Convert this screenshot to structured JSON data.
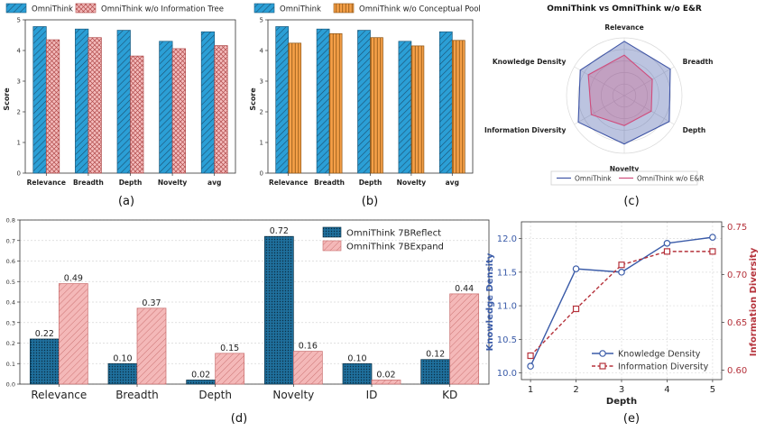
{
  "colors": {
    "omnithink": "#2b9fd6",
    "omnithink_edge": "#1a5a7f",
    "no_info_tree": "#f4bcbc",
    "no_info_tree_edge": "#b04a4a",
    "no_concept_pool": "#f5a048",
    "no_concept_pool_edge": "#8a5314",
    "radar_full": "#3f55a6",
    "radar_ablated": "#d04c7c",
    "reflect": "#1f6f9c",
    "expand": "#f4b8b8",
    "kd_line": "#3a5ba8",
    "id_line": "#b5323b"
  },
  "chart_data": [
    {
      "id": "a",
      "caption": "(a)",
      "type": "bar",
      "title": "",
      "xlabel": "",
      "ylabel": "Score",
      "ylim": [
        0,
        5
      ],
      "yticks": [
        "0",
        "1",
        "2",
        "3",
        "4",
        "5"
      ],
      "categories": [
        "Relevance",
        "Breadth",
        "Depth",
        "Novelty",
        "avg"
      ],
      "series": [
        {
          "name": "OmniThink",
          "values": [
            4.78,
            4.7,
            4.66,
            4.3,
            4.61
          ]
        },
        {
          "name": "OmniThink w/o Information Tree",
          "values": [
            4.35,
            4.42,
            3.82,
            4.06,
            4.16
          ]
        }
      ]
    },
    {
      "id": "b",
      "caption": "(b)",
      "type": "bar",
      "title": "",
      "xlabel": "",
      "ylabel": "Score",
      "ylim": [
        0,
        5
      ],
      "yticks": [
        "0",
        "1",
        "2",
        "3",
        "4",
        "5"
      ],
      "categories": [
        "Relevance",
        "Breadth",
        "Depth",
        "Novelty",
        "avg"
      ],
      "series": [
        {
          "name": "OmniThink",
          "values": [
            4.78,
            4.7,
            4.66,
            4.3,
            4.61
          ]
        },
        {
          "name": "OmniThink w/o Conceptual Pool",
          "values": [
            4.24,
            4.55,
            4.42,
            4.15,
            4.33
          ]
        }
      ]
    },
    {
      "id": "c",
      "caption": "(c)",
      "type": "radar",
      "title": "OmniThink vs OmniThink w/o E&R",
      "axes": [
        "Relevance",
        "Breadth",
        "Depth",
        "Novelty",
        "Information Diversity",
        "Knowledge Density"
      ],
      "rmax": 5,
      "series": [
        {
          "name": "OmniThink",
          "values": [
            4.7,
            4.6,
            4.5,
            4.2,
            4.6,
            4.4
          ]
        },
        {
          "name": "OmniThink w/o E&R",
          "values": [
            3.5,
            2.8,
            2.7,
            2.6,
            3.3,
            3.6
          ]
        }
      ]
    },
    {
      "id": "d",
      "caption": "(d)",
      "type": "bar",
      "title": "",
      "xlabel": "",
      "ylabel": "",
      "ylim": [
        0,
        0.8
      ],
      "yticks": [
        "0.0",
        "0.1",
        "0.2",
        "0.3",
        "0.4",
        "0.5",
        "0.6",
        "0.7",
        "0.8"
      ],
      "categories": [
        "Relevance",
        "Breadth",
        "Depth",
        "Novelty",
        "ID",
        "KD"
      ],
      "series": [
        {
          "name": "OmniThink 7BReflect",
          "values": [
            0.22,
            0.1,
            0.02,
            0.72,
            0.1,
            0.12
          ],
          "labels": [
            "0.22",
            "0.10",
            "0.02",
            "0.72",
            "0.10",
            "0.12"
          ]
        },
        {
          "name": "OmniThink 7BExpand",
          "values": [
            0.49,
            0.37,
            0.15,
            0.16,
            0.02,
            0.44
          ],
          "labels": [
            "0.49",
            "0.37",
            "0.15",
            "0.16",
            "0.02",
            "0.44"
          ]
        }
      ]
    },
    {
      "id": "e",
      "caption": "(e)",
      "type": "line",
      "title": "",
      "xlabel": "Depth",
      "x": [
        1,
        2,
        3,
        4,
        5
      ],
      "xticks": [
        "1",
        "2",
        "3",
        "4",
        "5"
      ],
      "ylabel_left": "Knowledge Density",
      "ylabel_right": "Information Diversity",
      "ylim_left": [
        9.9,
        12.25
      ],
      "yticks_left": [
        "10.0",
        "10.5",
        "11.0",
        "11.5",
        "12.0"
      ],
      "ylim_right": [
        0.59,
        0.755
      ],
      "yticks_right": [
        "0.60",
        "0.65",
        "0.70",
        "0.75"
      ],
      "series": [
        {
          "name": "Knowledge Density",
          "axis": "left",
          "values": [
            10.1,
            11.55,
            11.5,
            11.93,
            12.02
          ]
        },
        {
          "name": "Information Diversity",
          "axis": "right",
          "values": [
            0.615,
            0.664,
            0.71,
            0.724,
            0.724
          ]
        }
      ]
    }
  ]
}
